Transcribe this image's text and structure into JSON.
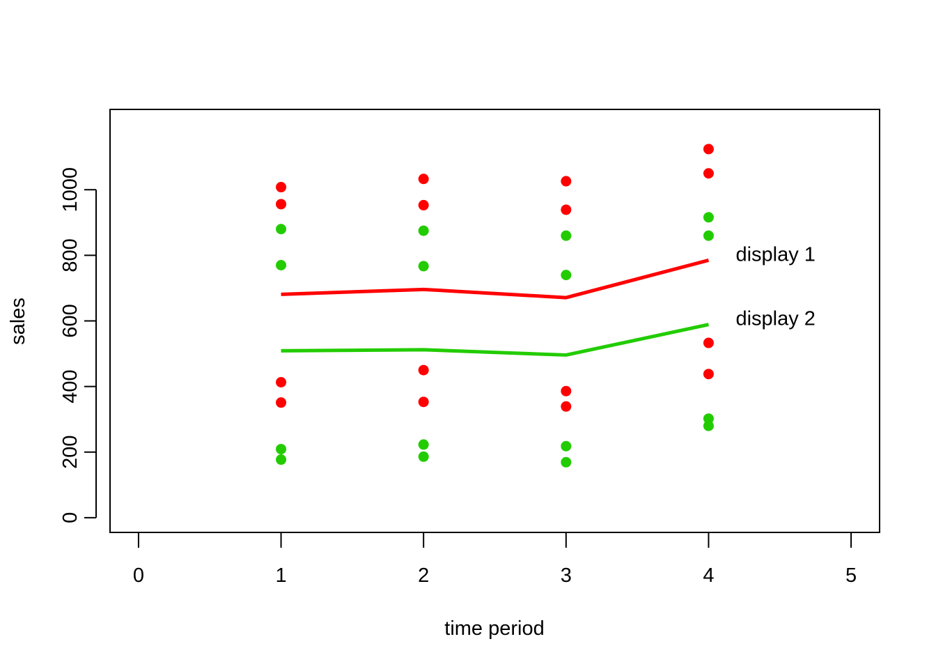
{
  "chart_data": {
    "type": "line",
    "xlabel": "time period",
    "ylabel": "sales",
    "xlim": [
      -0.2,
      5.2
    ],
    "ylim": [
      -45,
      1245
    ],
    "x_ticks": [
      0,
      1,
      2,
      3,
      4,
      5
    ],
    "y_ticks": [
      0,
      200,
      400,
      600,
      800,
      1000
    ],
    "grid": false,
    "x": [
      1,
      2,
      3,
      4
    ],
    "series": [
      {
        "name": "display 1",
        "color": "#ff0000",
        "mean_line": [
          681,
          696,
          671,
          785
        ],
        "points": [
          [
            1,
            1008
          ],
          [
            1,
            956
          ],
          [
            1,
            413
          ],
          [
            1,
            351
          ],
          [
            2,
            1033
          ],
          [
            2,
            953
          ],
          [
            2,
            450
          ],
          [
            2,
            353
          ],
          [
            3,
            1026
          ],
          [
            3,
            939
          ],
          [
            3,
            386
          ],
          [
            3,
            339
          ],
          [
            4,
            1124
          ],
          [
            4,
            1050
          ],
          [
            4,
            533
          ],
          [
            4,
            438
          ]
        ]
      },
      {
        "name": "display 2",
        "color": "#22cc00",
        "mean_line": [
          509,
          512,
          496,
          589
        ],
        "points": [
          [
            1,
            880
          ],
          [
            1,
            770
          ],
          [
            1,
            209
          ],
          [
            1,
            177
          ],
          [
            2,
            875
          ],
          [
            2,
            767
          ],
          [
            2,
            223
          ],
          [
            2,
            186
          ],
          [
            3,
            860
          ],
          [
            3,
            740
          ],
          [
            3,
            218
          ],
          [
            3,
            169
          ],
          [
            4,
            916
          ],
          [
            4,
            860
          ],
          [
            4,
            302
          ],
          [
            4,
            280
          ]
        ]
      }
    ]
  }
}
